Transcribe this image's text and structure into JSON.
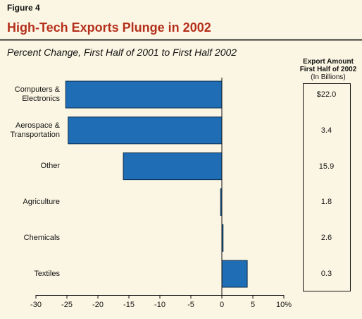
{
  "figure_label": "Figure 4",
  "chart_data": {
    "type": "bar",
    "orientation": "horizontal",
    "title": "High-Tech Exports Plunge in 2002",
    "subtitle": "Percent Change, First Half of 2001 to First Half 2002",
    "categories": [
      "Computers &\nElectronics",
      "Aerospace &\nTransportation",
      "Other",
      "Agriculture",
      "Chemicals",
      "Textiles"
    ],
    "values": [
      -25.2,
      -24.8,
      -15.9,
      -0.2,
      0.2,
      4.1
    ],
    "color": "#1f6db4",
    "xlim": [
      -30,
      10
    ],
    "xticks": [
      -30,
      -25,
      -20,
      -15,
      -10,
      -5,
      0,
      5,
      {
        "value": 10,
        "label": "10%"
      }
    ]
  },
  "export_table": {
    "title": "Export Amount\nFirst Half of 2002",
    "subtitle": "(In Billions)",
    "amounts": [
      "$22.0",
      "3.4",
      "15.9",
      "1.8",
      "2.6",
      "0.3"
    ]
  }
}
